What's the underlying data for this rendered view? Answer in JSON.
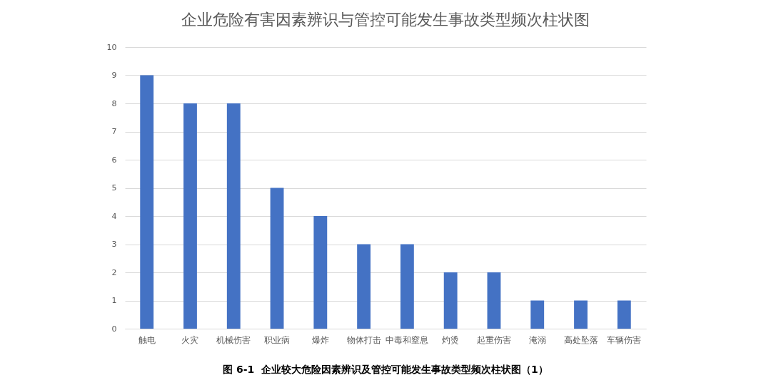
{
  "chart_data": {
    "type": "bar",
    "title": "企业危险有害因素辨识与管控可能发生事故类型频次柱状图",
    "categories": [
      "触电",
      "火灾",
      "机械伤害",
      "职业病",
      "爆炸",
      "物体打击",
      "中毒和窒息",
      "灼烫",
      "起重伤害",
      "淹溺",
      "高处坠落",
      "车辆伤害"
    ],
    "values": [
      9,
      8,
      8,
      5,
      4,
      3,
      3,
      2,
      2,
      1,
      1,
      1
    ],
    "color": "#4472c4",
    "ylim": [
      0,
      10
    ],
    "yticks": [
      0,
      1,
      2,
      3,
      4,
      5,
      6,
      7,
      8,
      9,
      10
    ],
    "grid": "y",
    "annotations": [
      "图 6-1  企业较大危险因素辨识及管控可能发生事故类型频次柱状图（1）"
    ]
  }
}
